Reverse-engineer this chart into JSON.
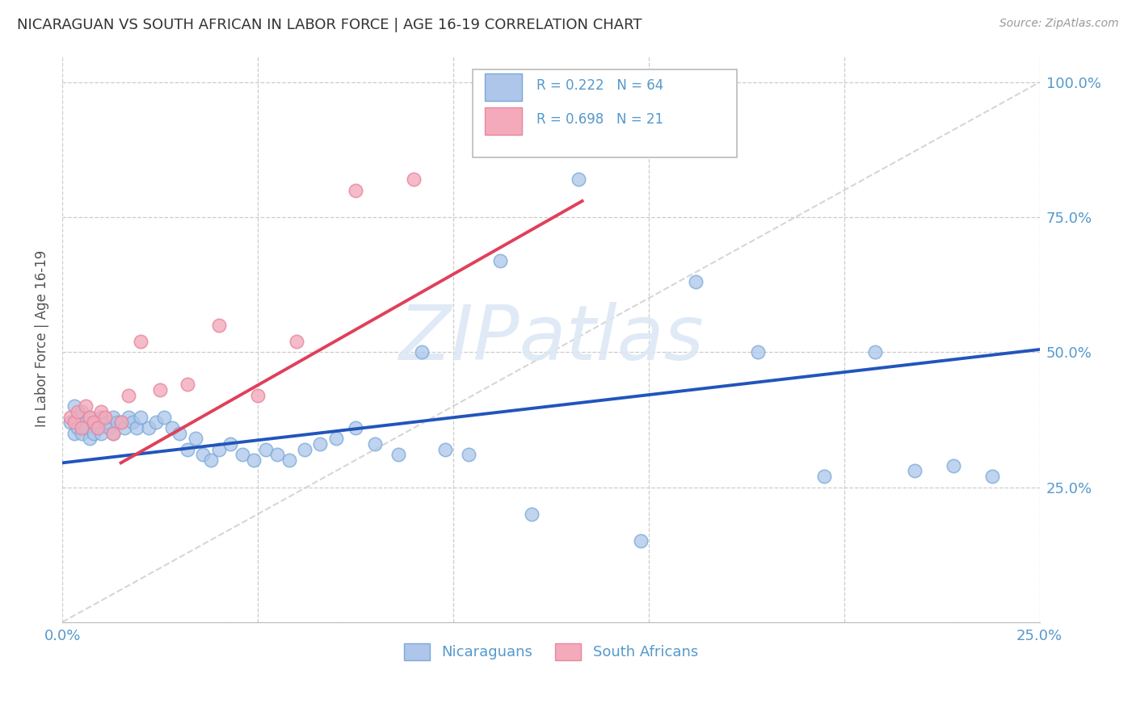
{
  "title": "NICARAGUAN VS SOUTH AFRICAN IN LABOR FORCE | AGE 16-19 CORRELATION CHART",
  "source": "Source: ZipAtlas.com",
  "ylabel": "In Labor Force | Age 16-19",
  "xlim": [
    0.0,
    0.25
  ],
  "ylim": [
    0.0,
    1.05
  ],
  "r_blue": 0.222,
  "n_blue": 64,
  "r_pink": 0.698,
  "n_pink": 21,
  "blue_color": "#adc6ea",
  "pink_color": "#f4aabb",
  "blue_edge_color": "#7aaad8",
  "pink_edge_color": "#e888a0",
  "blue_line_color": "#2255bb",
  "pink_line_color": "#e0405a",
  "ref_line_color": "#cccccc",
  "label_color": "#5599cc",
  "title_color": "#333333",
  "source_color": "#999999",
  "ylabel_color": "#555555",
  "legend_label_blue": "Nicaraguans",
  "legend_label_pink": "South Africans",
  "blue_line_x": [
    0.0,
    0.25
  ],
  "blue_line_y": [
    0.295,
    0.505
  ],
  "pink_line_x": [
    0.015,
    0.133
  ],
  "pink_line_y": [
    0.295,
    0.78
  ],
  "ref_line_x": [
    0.0,
    0.25
  ],
  "ref_line_y": [
    0.0,
    1.0
  ],
  "blue_x": [
    0.002,
    0.003,
    0.003,
    0.004,
    0.004,
    0.005,
    0.005,
    0.006,
    0.006,
    0.007,
    0.007,
    0.008,
    0.008,
    0.009,
    0.009,
    0.01,
    0.01,
    0.011,
    0.012,
    0.013,
    0.013,
    0.014,
    0.015,
    0.016,
    0.017,
    0.018,
    0.019,
    0.02,
    0.022,
    0.024,
    0.026,
    0.028,
    0.03,
    0.032,
    0.034,
    0.036,
    0.038,
    0.04,
    0.043,
    0.046,
    0.049,
    0.052,
    0.055,
    0.058,
    0.062,
    0.066,
    0.07,
    0.075,
    0.08,
    0.086,
    0.092,
    0.098,
    0.104,
    0.112,
    0.12,
    0.132,
    0.148,
    0.162,
    0.178,
    0.195,
    0.208,
    0.218,
    0.228,
    0.238
  ],
  "blue_y": [
    0.37,
    0.35,
    0.4,
    0.38,
    0.36,
    0.39,
    0.35,
    0.37,
    0.36,
    0.38,
    0.34,
    0.37,
    0.35,
    0.37,
    0.36,
    0.35,
    0.38,
    0.37,
    0.36,
    0.35,
    0.38,
    0.37,
    0.37,
    0.36,
    0.38,
    0.37,
    0.36,
    0.38,
    0.36,
    0.37,
    0.38,
    0.36,
    0.35,
    0.32,
    0.34,
    0.31,
    0.3,
    0.32,
    0.33,
    0.31,
    0.3,
    0.32,
    0.31,
    0.3,
    0.32,
    0.33,
    0.34,
    0.36,
    0.33,
    0.31,
    0.5,
    0.32,
    0.31,
    0.67,
    0.2,
    0.82,
    0.15,
    0.63,
    0.5,
    0.27,
    0.5,
    0.28,
    0.29,
    0.27
  ],
  "pink_x": [
    0.002,
    0.003,
    0.004,
    0.005,
    0.006,
    0.007,
    0.008,
    0.009,
    0.01,
    0.011,
    0.013,
    0.015,
    0.017,
    0.02,
    0.025,
    0.032,
    0.04,
    0.05,
    0.06,
    0.075,
    0.09
  ],
  "pink_y": [
    0.38,
    0.37,
    0.39,
    0.36,
    0.4,
    0.38,
    0.37,
    0.36,
    0.39,
    0.38,
    0.35,
    0.37,
    0.42,
    0.52,
    0.43,
    0.44,
    0.55,
    0.42,
    0.52,
    0.8,
    0.82
  ],
  "watermark": "ZIPatlas",
  "watermark_color": "#dde8f5",
  "watermark_alpha": 0.9
}
